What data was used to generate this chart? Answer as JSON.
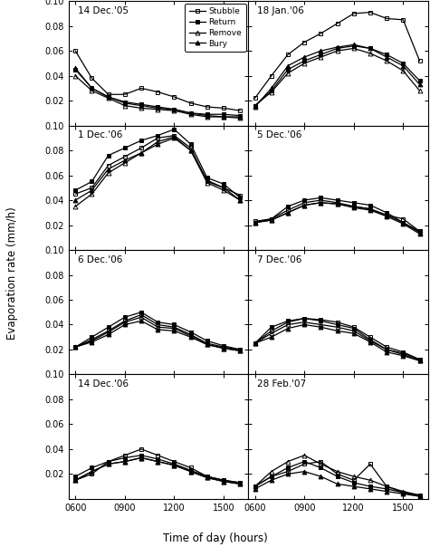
{
  "x": [
    600,
    700,
    800,
    900,
    1000,
    1100,
    1200,
    1300,
    1400,
    1500,
    1600
  ],
  "panels": [
    {
      "title": "14 Dec.'05",
      "row": 0,
      "col": 0,
      "stubble": [
        0.06,
        0.038,
        0.025,
        0.025,
        0.03,
        0.027,
        0.023,
        0.018,
        0.015,
        0.014,
        0.012
      ],
      "return_": [
        0.045,
        0.03,
        0.023,
        0.019,
        0.017,
        0.015,
        0.013,
        0.01,
        0.009,
        0.009,
        0.008
      ],
      "remove": [
        0.04,
        0.028,
        0.022,
        0.016,
        0.014,
        0.013,
        0.012,
        0.009,
        0.007,
        0.007,
        0.006
      ],
      "bury": [
        0.046,
        0.03,
        0.023,
        0.018,
        0.016,
        0.014,
        0.013,
        0.01,
        0.008,
        0.007,
        0.007
      ]
    },
    {
      "title": "18 Jan.'06",
      "row": 0,
      "col": 1,
      "stubble": [
        0.022,
        0.04,
        0.057,
        0.067,
        0.074,
        0.082,
        0.09,
        0.091,
        0.086,
        0.085,
        0.052
      ],
      "return_": [
        0.016,
        0.028,
        0.045,
        0.052,
        0.057,
        0.062,
        0.064,
        0.062,
        0.057,
        0.05,
        0.036
      ],
      "remove": [
        0.016,
        0.027,
        0.042,
        0.05,
        0.055,
        0.06,
        0.062,
        0.058,
        0.052,
        0.044,
        0.028
      ],
      "bury": [
        0.015,
        0.03,
        0.048,
        0.055,
        0.06,
        0.063,
        0.065,
        0.062,
        0.055,
        0.048,
        0.033
      ]
    },
    {
      "title": "1 Dec.'06",
      "row": 1,
      "col": 0,
      "stubble": [
        0.045,
        0.05,
        0.068,
        0.075,
        0.082,
        0.09,
        0.092,
        0.082,
        0.055,
        0.05,
        0.044
      ],
      "return_": [
        0.048,
        0.055,
        0.076,
        0.082,
        0.088,
        0.092,
        0.097,
        0.085,
        0.058,
        0.053,
        0.042
      ],
      "remove": [
        0.035,
        0.045,
        0.062,
        0.07,
        0.078,
        0.087,
        0.091,
        0.08,
        0.054,
        0.048,
        0.04
      ],
      "bury": [
        0.04,
        0.048,
        0.065,
        0.072,
        0.078,
        0.085,
        0.09,
        0.08,
        0.056,
        0.05,
        0.04
      ]
    },
    {
      "title": "5 Dec.'06",
      "row": 1,
      "col": 1,
      "stubble": [
        0.023,
        0.025,
        0.032,
        0.038,
        0.04,
        0.038,
        0.035,
        0.033,
        0.028,
        0.025,
        0.015
      ],
      "return_": [
        0.022,
        0.025,
        0.035,
        0.04,
        0.042,
        0.04,
        0.038,
        0.036,
        0.03,
        0.022,
        0.015
      ],
      "remove": [
        0.022,
        0.024,
        0.03,
        0.036,
        0.038,
        0.037,
        0.035,
        0.033,
        0.028,
        0.022,
        0.014
      ],
      "bury": [
        0.022,
        0.024,
        0.03,
        0.036,
        0.038,
        0.037,
        0.034,
        0.032,
        0.027,
        0.021,
        0.013
      ]
    },
    {
      "title": "6 Dec.'06",
      "row": 2,
      "col": 0,
      "stubble": [
        0.022,
        0.028,
        0.035,
        0.043,
        0.048,
        0.04,
        0.038,
        0.032,
        0.025,
        0.022,
        0.02
      ],
      "return_": [
        0.022,
        0.03,
        0.038,
        0.046,
        0.05,
        0.042,
        0.04,
        0.034,
        0.027,
        0.023,
        0.02
      ],
      "remove": [
        0.022,
        0.027,
        0.034,
        0.042,
        0.046,
        0.038,
        0.037,
        0.031,
        0.024,
        0.021,
        0.019
      ],
      "bury": [
        0.022,
        0.026,
        0.032,
        0.04,
        0.043,
        0.036,
        0.035,
        0.03,
        0.024,
        0.021,
        0.019
      ]
    },
    {
      "title": "7 Dec.'06",
      "row": 2,
      "col": 1,
      "stubble": [
        0.025,
        0.035,
        0.042,
        0.045,
        0.044,
        0.042,
        0.038,
        0.03,
        0.022,
        0.018,
        0.012
      ],
      "return_": [
        0.025,
        0.038,
        0.043,
        0.045,
        0.043,
        0.04,
        0.037,
        0.028,
        0.02,
        0.017,
        0.012
      ],
      "remove": [
        0.025,
        0.033,
        0.04,
        0.042,
        0.04,
        0.038,
        0.035,
        0.027,
        0.02,
        0.016,
        0.011
      ],
      "bury": [
        0.025,
        0.03,
        0.037,
        0.04,
        0.038,
        0.035,
        0.033,
        0.026,
        0.018,
        0.015,
        0.011
      ]
    },
    {
      "title": "14 Dec.'06",
      "row": 3,
      "col": 0,
      "stubble": [
        0.015,
        0.02,
        0.03,
        0.035,
        0.04,
        0.035,
        0.03,
        0.025,
        0.018,
        0.015,
        0.013
      ],
      "return_": [
        0.018,
        0.025,
        0.03,
        0.033,
        0.035,
        0.032,
        0.028,
        0.023,
        0.018,
        0.015,
        0.013
      ],
      "remove": [
        0.015,
        0.022,
        0.028,
        0.03,
        0.033,
        0.03,
        0.027,
        0.022,
        0.017,
        0.014,
        0.012
      ],
      "bury": [
        0.015,
        0.022,
        0.028,
        0.03,
        0.033,
        0.03,
        0.027,
        0.022,
        0.017,
        0.014,
        0.012
      ]
    },
    {
      "title": "28 Feb.'07",
      "row": 3,
      "col": 1,
      "stubble": [
        0.01,
        0.018,
        0.022,
        0.028,
        0.03,
        0.02,
        0.015,
        0.028,
        0.01,
        0.005,
        0.003
      ],
      "return_": [
        0.01,
        0.018,
        0.025,
        0.03,
        0.025,
        0.018,
        0.013,
        0.01,
        0.008,
        0.005,
        0.002
      ],
      "remove": [
        0.01,
        0.022,
        0.03,
        0.035,
        0.028,
        0.022,
        0.018,
        0.015,
        0.01,
        0.006,
        0.003
      ],
      "bury": [
        0.008,
        0.015,
        0.02,
        0.022,
        0.018,
        0.012,
        0.01,
        0.008,
        0.006,
        0.004,
        0.002
      ]
    }
  ],
  "ylim": [
    0.0,
    0.1
  ],
  "ytick_vals": [
    0.02,
    0.04,
    0.06,
    0.08,
    0.1
  ],
  "ytick_labels_left": [
    "0.02",
    "0.04",
    "0.06",
    "0.08",
    "0.10"
  ],
  "xtick_positions": [
    600,
    900,
    1200,
    1500
  ],
  "xtick_labels": [
    "0600",
    "0900",
    "1200",
    "1500"
  ],
  "xlabel": "Time of day (hours)",
  "ylabel": "Evaporation rate (mm/h)",
  "legend_labels": [
    "Stubble",
    "Return",
    "Remove",
    "Bury"
  ],
  "xlim": [
    560,
    1650
  ],
  "figsize": [
    4.75,
    6.04
  ],
  "dpi": 100
}
